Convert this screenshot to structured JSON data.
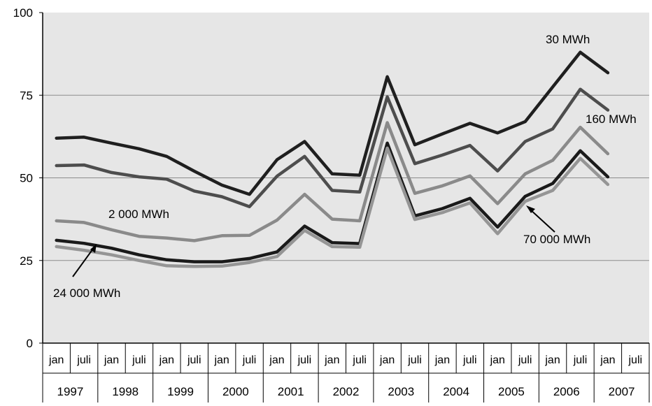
{
  "chart_data": {
    "type": "line",
    "title": "",
    "xlabel": "",
    "ylabel": "",
    "ylim": [
      0,
      100
    ],
    "yticks": [
      0,
      25,
      50,
      75,
      100
    ],
    "grid": "horizontal",
    "plot_background": "#e6e6e6",
    "x_sub_labels": [
      "jan",
      "juli"
    ],
    "years": [
      "1997",
      "1998",
      "1999",
      "2000",
      "2001",
      "2002",
      "2003",
      "2004",
      "2005",
      "2006",
      "2007"
    ],
    "x": [
      "1997 jan",
      "1997 juli",
      "1998 jan",
      "1998 juli",
      "1999 jan",
      "1999 juli",
      "2000 jan",
      "2000 juli",
      "2001 jan",
      "2001 juli",
      "2002 jan",
      "2002 juli",
      "2003 jan",
      "2003 juli",
      "2004 jan",
      "2004 juli",
      "2005 jan",
      "2005 juli",
      "2006 jan",
      "2006 juli",
      "2007 jan"
    ],
    "series": [
      {
        "name": "30 MWh",
        "color": "#1f1f1f",
        "values": [
          62,
          62.3,
          60.5,
          58.8,
          56.5,
          52,
          47.8,
          45,
          55.5,
          61,
          51.2,
          50.8,
          80.6,
          60,
          63.3,
          66.5,
          63.6,
          67,
          77.5,
          88,
          81.8
        ]
      },
      {
        "name": "160 MWh",
        "color": "#4d4d4d",
        "values": [
          53.7,
          53.9,
          51.6,
          50.3,
          49.6,
          46,
          44.3,
          41.3,
          50.5,
          56.5,
          46.2,
          45.7,
          74.5,
          54.3,
          56.9,
          59.8,
          52.1,
          61,
          64.8,
          76.8,
          70.5
        ]
      },
      {
        "name": "2 000 MWh",
        "color": "#8a8a8a",
        "values": [
          37,
          36.5,
          34.3,
          32.3,
          31.8,
          31,
          32.5,
          32.6,
          37.2,
          45,
          37.5,
          37,
          66.7,
          45.3,
          47.6,
          50.6,
          42.2,
          51.2,
          55.3,
          65.3,
          57.3
        ]
      },
      {
        "name": "24 000 MWh",
        "color": "#1a1a1a",
        "values": [
          31.1,
          30.2,
          28.7,
          26.7,
          25.2,
          24.6,
          24.6,
          25.6,
          27.6,
          35.4,
          30.4,
          30.1,
          60.5,
          38.5,
          40.7,
          43.8,
          35.1,
          44.4,
          48.3,
          58.2,
          50.3
        ]
      },
      {
        "name": "70 000 MWh",
        "color": "#959595",
        "values": [
          29.2,
          28.1,
          26.7,
          25,
          23.4,
          23.2,
          23.3,
          24.4,
          26.2,
          34.1,
          29.2,
          29,
          59,
          37.4,
          39.5,
          42.4,
          33.1,
          42.9,
          46.2,
          55.9,
          48
        ]
      }
    ],
    "annotations": [
      "30 MWh",
      "160 MWh",
      "2 000 MWh",
      "70 000 MWh",
      "24 000 MWh"
    ]
  }
}
